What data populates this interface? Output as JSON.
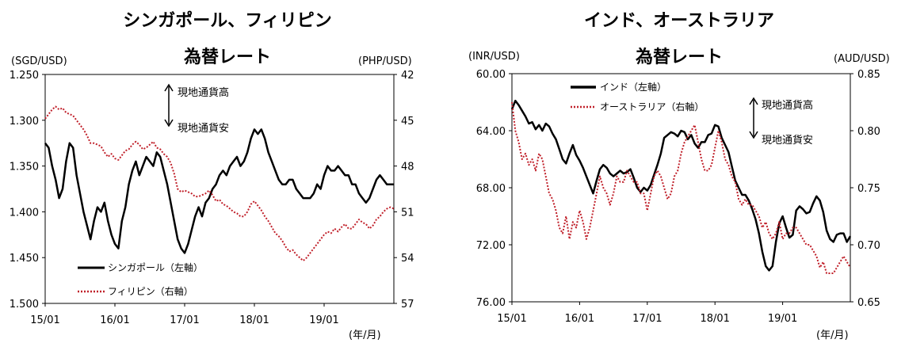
{
  "chart_data": [
    {
      "type": "line",
      "title": "シンガポール、フィリピン",
      "subtitle": "為替レート",
      "left_axis_unit": "(SGD/USD)",
      "right_axis_unit": "(PHP/USD)",
      "x_unit": "(年/月)",
      "x_ticks": [
        "15/01",
        "16/01",
        "17/01",
        "18/01",
        "19/01"
      ],
      "x_range": [
        2015.0,
        2020.0
      ],
      "left_axis": {
        "range": [
          1.25,
          1.5
        ],
        "inverted": true,
        "ticks": [
          "1.250",
          "1.300",
          "1.350",
          "1.400",
          "1.450",
          "1.500"
        ]
      },
      "right_axis": {
        "range": [
          42,
          57
        ],
        "inverted": true,
        "ticks": [
          "42",
          "45",
          "48",
          "51",
          "54",
          "57"
        ]
      },
      "annotation_up": "現地通貨高",
      "annotation_down": "現地通貨安",
      "series": [
        {
          "name": "シンガポール（左軸）",
          "axis": "left",
          "color": "#000000",
          "style": "solid",
          "x": [
            2015.0,
            2015.05,
            2015.1,
            2015.15,
            2015.2,
            2015.25,
            2015.3,
            2015.35,
            2015.4,
            2015.45,
            2015.5,
            2015.55,
            2015.6,
            2015.65,
            2015.7,
            2015.75,
            2015.8,
            2015.85,
            2015.9,
            2015.95,
            2016.0,
            2016.05,
            2016.1,
            2016.15,
            2016.2,
            2016.25,
            2016.3,
            2016.35,
            2016.4,
            2016.45,
            2016.5,
            2016.55,
            2016.6,
            2016.65,
            2016.7,
            2016.75,
            2016.8,
            2016.85,
            2016.9,
            2016.95,
            2017.0,
            2017.05,
            2017.1,
            2017.15,
            2017.2,
            2017.25,
            2017.3,
            2017.35,
            2017.4,
            2017.45,
            2017.5,
            2017.55,
            2017.6,
            2017.65,
            2017.7,
            2017.75,
            2017.8,
            2017.85,
            2017.9,
            2017.95,
            2018.0,
            2018.05,
            2018.1,
            2018.15,
            2018.2,
            2018.25,
            2018.3,
            2018.35,
            2018.4,
            2018.45,
            2018.5,
            2018.55,
            2018.6,
            2018.65,
            2018.7,
            2018.75,
            2018.8,
            2018.85,
            2018.9,
            2018.95,
            2019.0,
            2019.05,
            2019.1,
            2019.15,
            2019.2,
            2019.25,
            2019.3,
            2019.35,
            2019.4,
            2019.45,
            2019.5,
            2019.55,
            2019.6,
            2019.65,
            2019.7,
            2019.75,
            2019.8,
            2019.85,
            2019.9,
            2019.95,
            2020.0
          ],
          "values": [
            1.325,
            1.33,
            1.35,
            1.365,
            1.385,
            1.375,
            1.345,
            1.325,
            1.33,
            1.36,
            1.38,
            1.4,
            1.415,
            1.43,
            1.41,
            1.395,
            1.4,
            1.39,
            1.41,
            1.425,
            1.435,
            1.44,
            1.41,
            1.395,
            1.37,
            1.355,
            1.345,
            1.36,
            1.35,
            1.34,
            1.345,
            1.35,
            1.335,
            1.34,
            1.355,
            1.37,
            1.39,
            1.41,
            1.43,
            1.44,
            1.445,
            1.435,
            1.42,
            1.405,
            1.395,
            1.405,
            1.39,
            1.385,
            1.375,
            1.37,
            1.36,
            1.355,
            1.36,
            1.35,
            1.345,
            1.34,
            1.35,
            1.345,
            1.335,
            1.32,
            1.31,
            1.315,
            1.31,
            1.32,
            1.335,
            1.345,
            1.355,
            1.365,
            1.37,
            1.37,
            1.365,
            1.365,
            1.375,
            1.38,
            1.385,
            1.385,
            1.385,
            1.38,
            1.37,
            1.375,
            1.36,
            1.35,
            1.355,
            1.355,
            1.35,
            1.355,
            1.36,
            1.36,
            1.37,
            1.37,
            1.38,
            1.385,
            1.39,
            1.385,
            1.375,
            1.365,
            1.36,
            1.365,
            1.37,
            1.37,
            1.37
          ]
        },
        {
          "name": "フィリピン（右軸）",
          "axis": "right",
          "color": "#c0202a",
          "style": "dotted",
          "x": [
            2015.0,
            2015.05,
            2015.1,
            2015.15,
            2015.2,
            2015.25,
            2015.3,
            2015.35,
            2015.4,
            2015.45,
            2015.5,
            2015.55,
            2015.6,
            2015.65,
            2015.7,
            2015.75,
            2015.8,
            2015.85,
            2015.9,
            2015.95,
            2016.0,
            2016.05,
            2016.1,
            2016.15,
            2016.2,
            2016.25,
            2016.3,
            2016.35,
            2016.4,
            2016.45,
            2016.5,
            2016.55,
            2016.6,
            2016.65,
            2016.7,
            2016.75,
            2016.8,
            2016.85,
            2016.9,
            2016.95,
            2017.0,
            2017.05,
            2017.1,
            2017.15,
            2017.2,
            2017.25,
            2017.3,
            2017.35,
            2017.4,
            2017.45,
            2017.5,
            2017.55,
            2017.6,
            2017.65,
            2017.7,
            2017.75,
            2017.8,
            2017.85,
            2017.9,
            2017.95,
            2018.0,
            2018.05,
            2018.1,
            2018.15,
            2018.2,
            2018.25,
            2018.3,
            2018.35,
            2018.4,
            2018.45,
            2018.5,
            2018.55,
            2018.6,
            2018.65,
            2018.7,
            2018.75,
            2018.8,
            2018.85,
            2018.9,
            2018.95,
            2019.0,
            2019.05,
            2019.1,
            2019.15,
            2019.2,
            2019.25,
            2019.3,
            2019.35,
            2019.4,
            2019.45,
            2019.5,
            2019.55,
            2019.6,
            2019.65,
            2019.7,
            2019.75,
            2019.8,
            2019.85,
            2019.9,
            2019.95,
            2020.0
          ],
          "values": [
            44.9,
            44.6,
            44.3,
            44.1,
            44.3,
            44.2,
            44.5,
            44.6,
            44.7,
            45.0,
            45.3,
            45.6,
            46.0,
            46.5,
            46.5,
            46.6,
            46.7,
            47.1,
            47.4,
            47.2,
            47.5,
            47.6,
            47.3,
            47.0,
            46.9,
            46.6,
            46.4,
            46.6,
            46.9,
            46.8,
            46.6,
            46.4,
            46.8,
            46.9,
            47.2,
            47.4,
            47.8,
            48.5,
            49.5,
            49.7,
            49.6,
            49.7,
            49.8,
            50.0,
            50.0,
            49.9,
            49.8,
            49.6,
            49.9,
            50.3,
            50.2,
            50.5,
            50.6,
            50.8,
            51.0,
            51.1,
            51.3,
            51.3,
            51.0,
            50.5,
            50.3,
            50.6,
            50.9,
            51.3,
            51.6,
            52.0,
            52.4,
            52.6,
            52.9,
            53.3,
            53.6,
            53.5,
            53.8,
            54.0,
            54.2,
            54.0,
            53.7,
            53.4,
            53.1,
            52.8,
            52.5,
            52.3,
            52.4,
            52.1,
            52.3,
            52.0,
            51.8,
            52.1,
            52.1,
            51.8,
            51.5,
            51.7,
            51.8,
            52.1,
            51.9,
            51.5,
            51.3,
            51.0,
            50.8,
            50.7,
            50.8
          ]
        }
      ]
    },
    {
      "type": "line",
      "title": "インド、オーストラリア",
      "subtitle": "為替レート",
      "left_axis_unit": "(INR/USD)",
      "right_axis_unit": "(AUD/USD)",
      "x_unit": "(年/月)",
      "x_ticks": [
        "15/01",
        "16/01",
        "17/01",
        "18/01",
        "19/01"
      ],
      "x_range": [
        2015.0,
        2020.0
      ],
      "left_axis": {
        "range": [
          60,
          76
        ],
        "inverted": true,
        "ticks": [
          "60.00",
          "64.00",
          "68.00",
          "72.00",
          "76.00"
        ]
      },
      "right_axis": {
        "range": [
          0.65,
          0.85
        ],
        "inverted": false,
        "ticks": [
          "0.85",
          "0.80",
          "0.75",
          "0.70",
          "0.65"
        ]
      },
      "annotation_up": "現地通貨高",
      "annotation_down": "現地通貨安",
      "series": [
        {
          "name": "インド（左軸）",
          "axis": "left",
          "color": "#000000",
          "style": "solid",
          "x": [
            2015.0,
            2015.05,
            2015.1,
            2015.15,
            2015.2,
            2015.25,
            2015.3,
            2015.35,
            2015.4,
            2015.45,
            2015.5,
            2015.55,
            2015.6,
            2015.65,
            2015.7,
            2015.75,
            2015.8,
            2015.85,
            2015.9,
            2015.95,
            2016.0,
            2016.05,
            2016.1,
            2016.15,
            2016.2,
            2016.25,
            2016.3,
            2016.35,
            2016.4,
            2016.45,
            2016.5,
            2016.55,
            2016.6,
            2016.65,
            2016.7,
            2016.75,
            2016.8,
            2016.85,
            2016.9,
            2016.95,
            2017.0,
            2017.05,
            2017.1,
            2017.15,
            2017.2,
            2017.25,
            2017.3,
            2017.35,
            2017.4,
            2017.45,
            2017.5,
            2017.55,
            2017.6,
            2017.65,
            2017.7,
            2017.75,
            2017.8,
            2017.85,
            2017.9,
            2017.95,
            2018.0,
            2018.05,
            2018.1,
            2018.15,
            2018.2,
            2018.25,
            2018.3,
            2018.35,
            2018.4,
            2018.45,
            2018.5,
            2018.55,
            2018.6,
            2018.65,
            2018.7,
            2018.75,
            2018.8,
            2018.85,
            2018.9,
            2018.95,
            2019.0,
            2019.05,
            2019.1,
            2019.15,
            2019.2,
            2019.25,
            2019.3,
            2019.35,
            2019.4,
            2019.45,
            2019.5,
            2019.55,
            2019.6,
            2019.65,
            2019.7,
            2019.75,
            2019.8,
            2019.85,
            2019.9,
            2019.95,
            2020.0
          ],
          "values": [
            62.5,
            61.9,
            62.2,
            62.6,
            63.0,
            63.5,
            63.4,
            63.9,
            63.6,
            64.0,
            63.5,
            63.7,
            64.2,
            64.6,
            65.3,
            66.0,
            66.3,
            65.6,
            65.0,
            65.7,
            66.1,
            66.6,
            67.2,
            67.8,
            68.4,
            67.5,
            66.7,
            66.4,
            66.6,
            67.0,
            67.2,
            67.0,
            66.8,
            67.0,
            66.9,
            66.7,
            67.3,
            68.0,
            68.3,
            68.0,
            68.2,
            67.8,
            67.1,
            66.4,
            65.6,
            64.5,
            64.3,
            64.1,
            64.2,
            64.4,
            64.0,
            64.1,
            64.6,
            64.3,
            64.9,
            65.2,
            64.8,
            64.8,
            64.3,
            64.2,
            63.6,
            63.7,
            64.5,
            65.0,
            65.5,
            66.5,
            67.5,
            68.0,
            68.5,
            68.5,
            68.9,
            69.5,
            70.2,
            71.2,
            72.5,
            73.5,
            73.8,
            73.5,
            71.8,
            70.5,
            70.0,
            70.8,
            71.5,
            71.3,
            69.6,
            69.3,
            69.5,
            69.8,
            69.7,
            69.1,
            68.6,
            68.9,
            69.7,
            71.0,
            71.6,
            71.8,
            71.3,
            71.2,
            71.2,
            71.8,
            71.4
          ]
        },
        {
          "name": "オーストラリア（右軸）",
          "axis": "right",
          "color": "#c0202a",
          "style": "dotted",
          "x": [
            2015.0,
            2015.05,
            2015.1,
            2015.15,
            2015.2,
            2015.25,
            2015.3,
            2015.35,
            2015.4,
            2015.45,
            2015.5,
            2015.55,
            2015.6,
            2015.65,
            2015.7,
            2015.75,
            2015.8,
            2015.85,
            2015.9,
            2015.95,
            2016.0,
            2016.05,
            2016.1,
            2016.15,
            2016.2,
            2016.25,
            2016.3,
            2016.35,
            2016.4,
            2016.45,
            2016.5,
            2016.55,
            2016.6,
            2016.65,
            2016.7,
            2016.75,
            2016.8,
            2016.85,
            2016.9,
            2016.95,
            2017.0,
            2017.05,
            2017.1,
            2017.15,
            2017.2,
            2017.25,
            2017.3,
            2017.35,
            2017.4,
            2017.45,
            2017.5,
            2017.55,
            2017.6,
            2017.65,
            2017.7,
            2017.75,
            2017.8,
            2017.85,
            2017.9,
            2017.95,
            2018.0,
            2018.05,
            2018.1,
            2018.15,
            2018.2,
            2018.25,
            2018.3,
            2018.35,
            2018.4,
            2018.45,
            2018.5,
            2018.55,
            2018.6,
            2018.65,
            2018.7,
            2018.75,
            2018.8,
            2018.85,
            2018.9,
            2018.95,
            2019.0,
            2019.05,
            2019.1,
            2019.15,
            2019.2,
            2019.25,
            2019.3,
            2019.35,
            2019.4,
            2019.45,
            2019.5,
            2019.55,
            2019.6,
            2019.65,
            2019.7,
            2019.75,
            2019.8,
            2019.85,
            2019.9,
            2019.95,
            2020.0
          ],
          "values": [
            0.825,
            0.8,
            0.79,
            0.775,
            0.78,
            0.77,
            0.775,
            0.765,
            0.78,
            0.775,
            0.76,
            0.745,
            0.74,
            0.73,
            0.715,
            0.71,
            0.725,
            0.705,
            0.72,
            0.715,
            0.73,
            0.72,
            0.705,
            0.715,
            0.73,
            0.745,
            0.76,
            0.75,
            0.745,
            0.735,
            0.745,
            0.76,
            0.755,
            0.755,
            0.765,
            0.76,
            0.755,
            0.755,
            0.745,
            0.745,
            0.73,
            0.745,
            0.76,
            0.765,
            0.76,
            0.75,
            0.74,
            0.745,
            0.76,
            0.765,
            0.78,
            0.79,
            0.795,
            0.8,
            0.805,
            0.79,
            0.775,
            0.765,
            0.765,
            0.77,
            0.785,
            0.8,
            0.79,
            0.775,
            0.77,
            0.76,
            0.755,
            0.74,
            0.735,
            0.74,
            0.735,
            0.735,
            0.73,
            0.725,
            0.715,
            0.72,
            0.71,
            0.705,
            0.71,
            0.72,
            0.705,
            0.71,
            0.71,
            0.715,
            0.715,
            0.71,
            0.705,
            0.7,
            0.7,
            0.695,
            0.69,
            0.68,
            0.685,
            0.675,
            0.675,
            0.675,
            0.68,
            0.685,
            0.69,
            0.685,
            0.68
          ]
        }
      ]
    }
  ]
}
